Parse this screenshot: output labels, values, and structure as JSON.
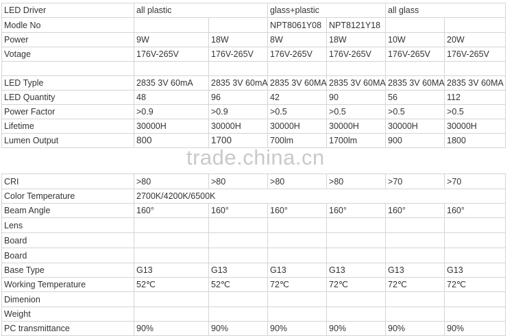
{
  "header": {
    "label": "LED Driver",
    "groups": [
      "all plastic",
      "glass+plastic",
      "all glass"
    ]
  },
  "rows": [
    {
      "label": "Modle No",
      "values": [
        "",
        "",
        "NPT8061Y08",
        "NPT8121Y18",
        "",
        ""
      ]
    },
    {
      "label": "Power",
      "values": [
        "9W",
        "18W",
        "8W",
        "18W",
        "10W",
        "20W"
      ]
    },
    {
      "label": "Votage",
      "values": [
        "176V-265V",
        "176V-265V",
        "176V-265V",
        "176V-265V",
        "176V-265V",
        "176V-265V"
      ]
    },
    {
      "label": "",
      "values": [
        "",
        "",
        "",
        "",
        "",
        ""
      ]
    },
    {
      "label": "LED Typle",
      "values": [
        "2835 3V 60mA",
        "2835 3V 60mA",
        "2835 3V 60MA",
        "2835 3V 60MA",
        "2835 3V 60MA",
        "2835 3V 60MA"
      ]
    },
    {
      "label": "LED Quantity",
      "values": [
        "48",
        "96",
        "42",
        "90",
        "56",
        "112"
      ]
    },
    {
      "label": "Power Factor",
      "values": [
        ">0.9",
        ">0.9",
        ">0.5",
        ">0.5",
        ">0.5",
        ">0.5"
      ]
    },
    {
      "label": "Lifetime",
      "values": [
        "30000H",
        "30000H",
        "30000H",
        "30000H",
        "30000H",
        "30000H"
      ]
    },
    {
      "label": "Lumen Output",
      "values": [
        "800",
        "1700",
        "700lm",
        "1700lm",
        "900",
        "1800"
      ]
    }
  ],
  "rows2": [
    {
      "label": "CRI",
      "values": [
        ">80",
        ">80",
        ">80",
        ">80",
        ">70",
        ">70"
      ]
    },
    {
      "label": "Color Temperature",
      "span_value": "2700K/4200K/6500K"
    },
    {
      "label": "Beam Angle",
      "values": [
        "160°",
        "160°",
        "160°",
        "160°",
        "160°",
        "160°"
      ]
    },
    {
      "label": "Lens",
      "values": [
        "",
        "",
        "",
        "",
        "",
        ""
      ]
    },
    {
      "label": "Board",
      "values": [
        "",
        "",
        "",
        "",
        "",
        ""
      ]
    },
    {
      "label": "Board",
      "values": [
        "",
        "",
        "",
        "",
        "",
        ""
      ]
    },
    {
      "label": "Base Type",
      "values": [
        "G13",
        "G13",
        "G13",
        "G13",
        "G13",
        "G13"
      ]
    },
    {
      "label": "Working Temperature",
      "values": [
        "52℃",
        "52℃",
        "72℃",
        "72℃",
        "72℃",
        "72℃"
      ]
    },
    {
      "label": "Dimenion",
      "values": [
        "",
        "",
        "",
        "",
        "",
        ""
      ]
    },
    {
      "label": "Weight",
      "values": [
        "",
        "",
        "",
        "",
        "",
        ""
      ]
    },
    {
      "label": "PC  transmittance",
      "values": [
        "90%",
        "90%",
        "90%",
        "90%",
        "90%",
        "90%"
      ]
    }
  ],
  "watermark": "trade.china.cn"
}
